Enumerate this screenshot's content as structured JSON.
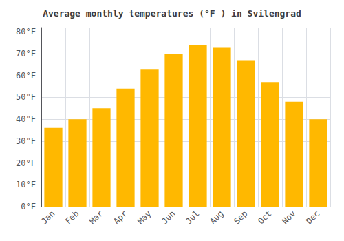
{
  "chart_data": {
    "type": "bar",
    "title": "Average monthly temperatures (°F ) in Svilengrad",
    "categories": [
      "Jan",
      "Feb",
      "Mar",
      "Apr",
      "May",
      "Jun",
      "Jul",
      "Aug",
      "Sep",
      "Oct",
      "Nov",
      "Dec"
    ],
    "values": [
      36,
      40,
      45,
      54,
      63,
      70,
      74,
      73,
      67,
      57,
      48,
      40
    ],
    "color": "#FFB800",
    "ylim": [
      0,
      82
    ],
    "yticks": [
      {
        "value": 0,
        "label": "0°F"
      },
      {
        "value": 10,
        "label": "10°F"
      },
      {
        "value": 20,
        "label": "20°F"
      },
      {
        "value": 30,
        "label": "30°F"
      },
      {
        "value": 40,
        "label": "40°F"
      },
      {
        "value": 50,
        "label": "50°F"
      },
      {
        "value": 60,
        "label": "60°F"
      },
      {
        "value": 70,
        "label": "70°F"
      },
      {
        "value": 80,
        "label": "80°F"
      }
    ],
    "grid": true
  }
}
